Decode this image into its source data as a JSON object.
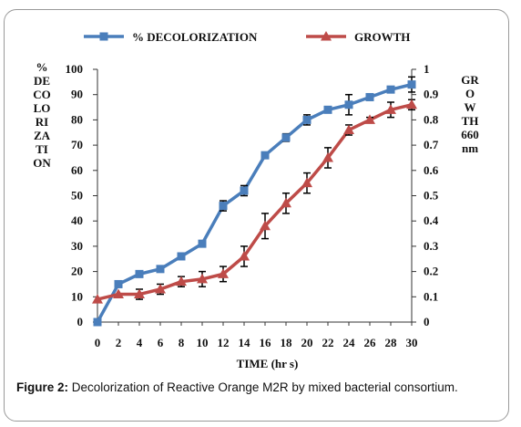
{
  "chart_data": {
    "type": "line",
    "xlabel": "TIME (hr s)",
    "ylabel": "% DECOLORIZATION",
    "y2label": "GROWTH 660nm",
    "x": [
      0,
      2,
      4,
      6,
      8,
      10,
      12,
      14,
      16,
      18,
      20,
      22,
      24,
      26,
      28,
      30
    ],
    "xlim": [
      0,
      30
    ],
    "ylim": [
      0,
      100
    ],
    "y2lim": [
      0,
      1
    ],
    "xticks": [
      "0",
      "2",
      "4",
      "6",
      "8",
      "10",
      "12",
      "14",
      "16",
      "18",
      "20",
      "22",
      "24",
      "26",
      "28",
      "30"
    ],
    "yticks": [
      "0",
      "10",
      "20",
      "30",
      "40",
      "50",
      "60",
      "70",
      "80",
      "90",
      "100"
    ],
    "y2ticks": [
      "0",
      "0.1",
      "0.2",
      "0.3",
      "0.4",
      "0.5",
      "0.6",
      "0.7",
      "0.8",
      "0.9",
      "1"
    ],
    "legend_position": "top",
    "series": [
      {
        "name": "% DECOLORIZATION",
        "axis": "left",
        "color": "#4a7ebb",
        "marker": "square",
        "values": [
          0,
          15,
          19,
          21,
          26,
          31,
          46,
          52,
          66,
          73,
          80,
          84,
          86,
          89,
          92,
          94
        ],
        "errors": [
          0,
          0,
          0,
          0,
          0,
          0,
          2,
          2,
          1,
          1.5,
          2,
          0,
          4,
          0,
          0,
          3
        ]
      },
      {
        "name": "GROWTH",
        "axis": "right",
        "color": "#be4b48",
        "marker": "triangle",
        "values": [
          0.09,
          0.11,
          0.11,
          0.13,
          0.16,
          0.17,
          0.19,
          0.26,
          0.38,
          0.47,
          0.55,
          0.65,
          0.76,
          0.8,
          0.84,
          0.86
        ],
        "errors": [
          0,
          0,
          0.02,
          0.02,
          0.02,
          0.03,
          0.03,
          0.04,
          0.05,
          0.04,
          0.04,
          0.04,
          0.02,
          0.01,
          0.03,
          0.02
        ]
      }
    ]
  },
  "caption": {
    "label": "Figure 2:",
    "text": " Decolorization of Reactive Orange M2R by mixed bacterial consortium."
  }
}
